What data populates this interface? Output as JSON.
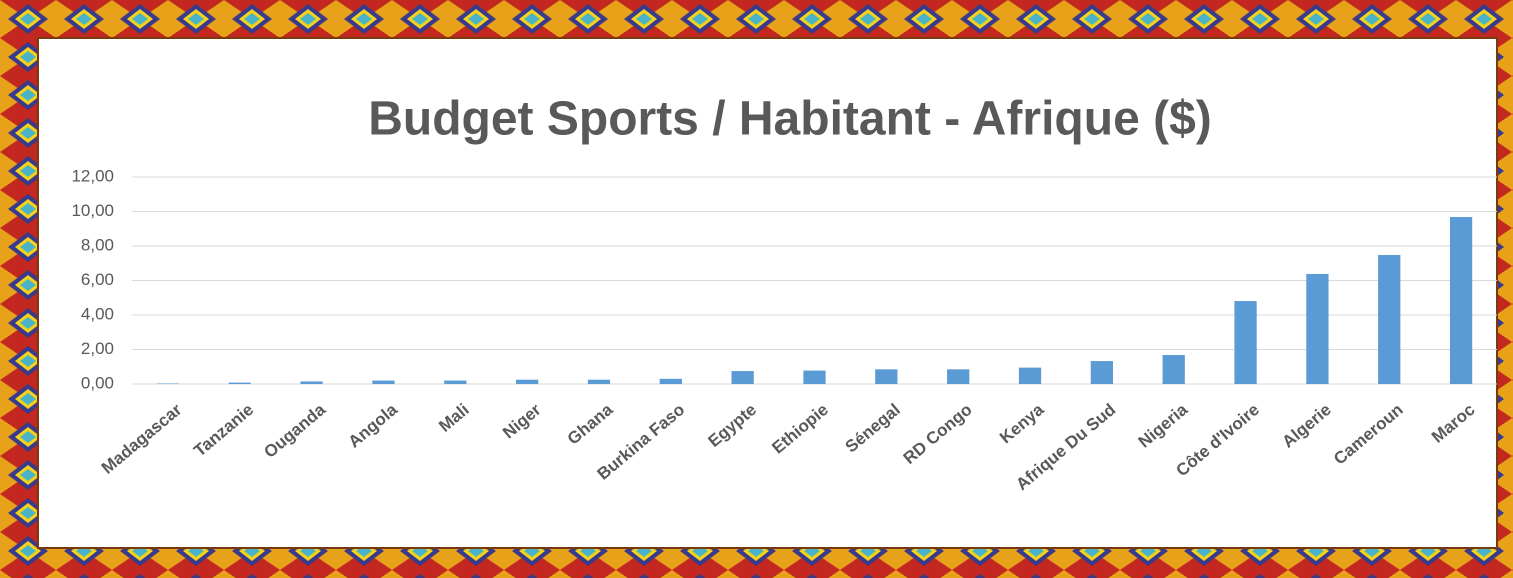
{
  "chart_data": {
    "type": "bar",
    "title": "Budget Sports / Habitant - Afrique ($)",
    "categories": [
      "Madagascar",
      "Tanzanie",
      "Ouganda",
      "Angola",
      "Mali",
      "Niger",
      "Ghana",
      "Burkina Faso",
      "Egypte",
      "Ethiopie",
      "Sénegal",
      "RD Congo",
      "Kenya",
      "Afrique Du Sud",
      "Nigeria",
      "Côte d'Ivoire",
      "Algerie",
      "Cameroun",
      "Maroc"
    ],
    "values": [
      0.03,
      0.08,
      0.15,
      0.2,
      0.2,
      0.25,
      0.25,
      0.3,
      0.75,
      0.78,
      0.85,
      0.85,
      0.95,
      1.33,
      1.68,
      4.81,
      6.38,
      7.48,
      9.68
    ],
    "color": "#5b9bd5",
    "ylim": [
      0,
      12
    ],
    "yticks": [
      {
        "value": 0,
        "label": "0,00"
      },
      {
        "value": 2,
        "label": "2,00"
      },
      {
        "value": 4,
        "label": "4,00"
      },
      {
        "value": 6,
        "label": "6,00"
      },
      {
        "value": 8,
        "label": "8,00"
      },
      {
        "value": 10,
        "label": "10,00"
      },
      {
        "value": 12,
        "label": "12,00"
      }
    ],
    "grid": true
  }
}
